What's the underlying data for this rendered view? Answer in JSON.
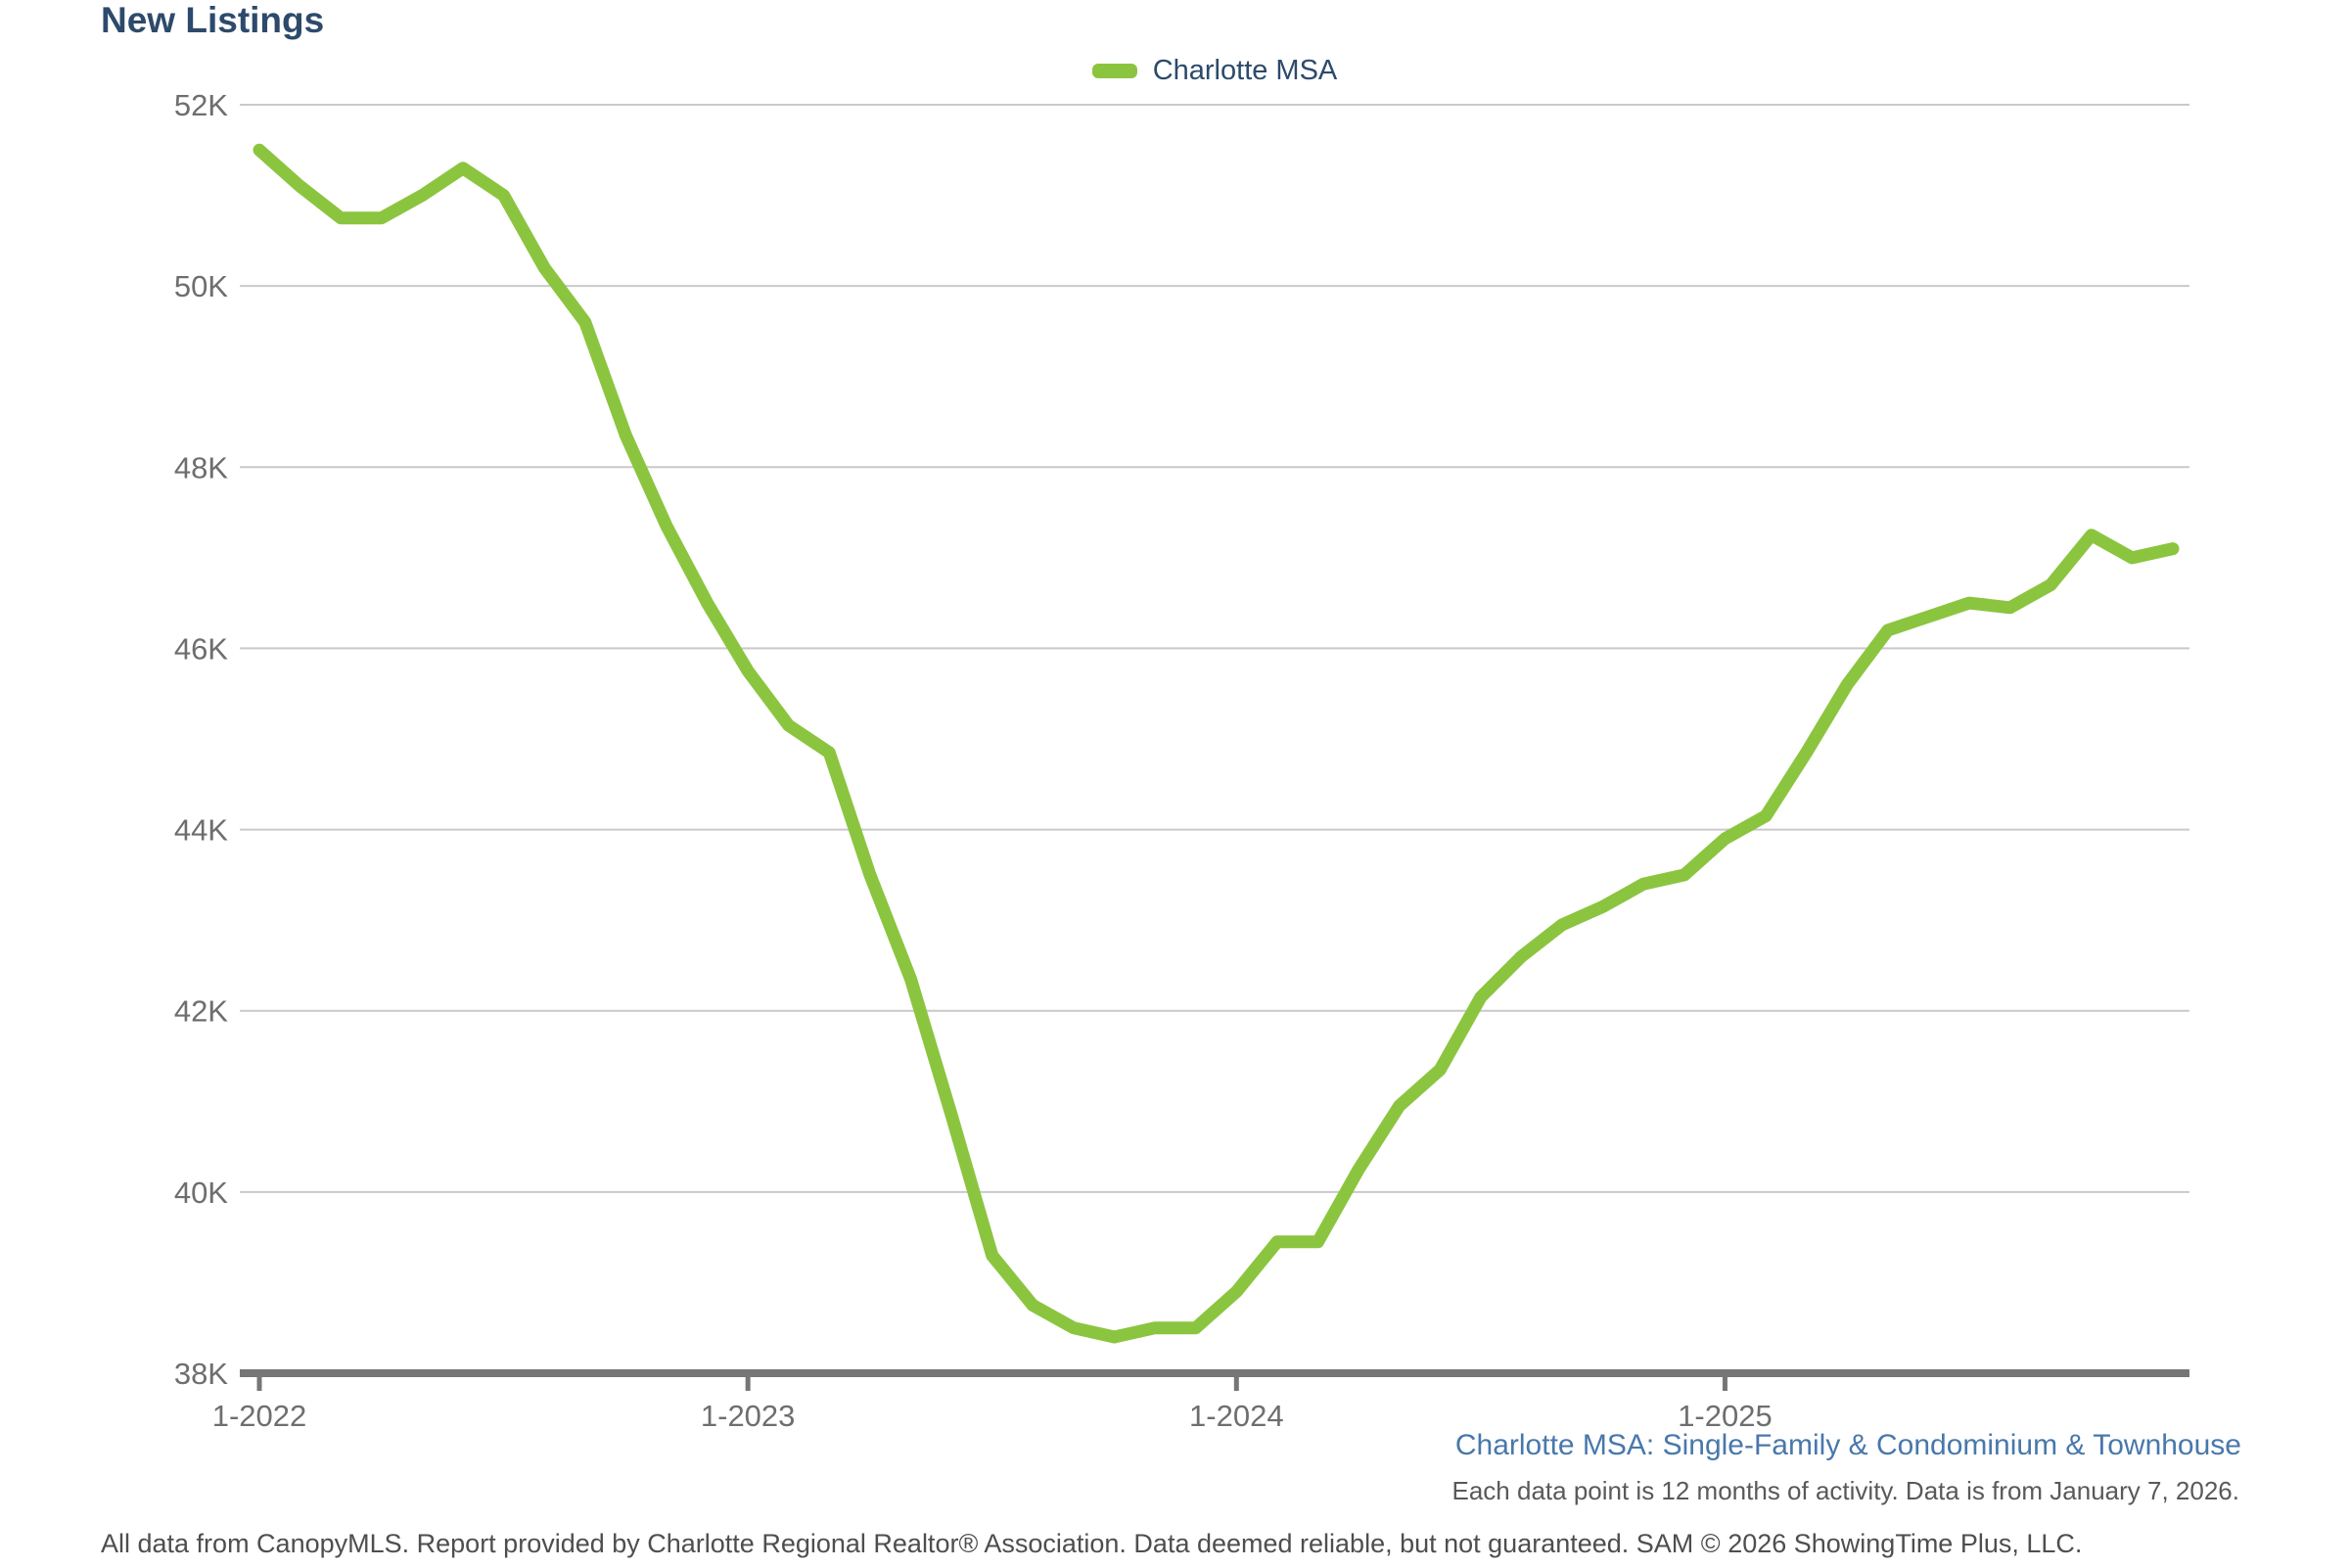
{
  "title": "New Listings",
  "legend": {
    "series_label": "Charlotte MSA"
  },
  "captions": {
    "series_note": "Charlotte MSA: Single-Family & Condominium & Townhouse",
    "data_note": "Each data point is 12 months of activity. Data is from January 7, 2026.",
    "footer": "All data from CanopyMLS. Report provided by Charlotte Regional Realtor® Association. Data deemed reliable, but not guaranteed. SAM © 2026 ShowingTime Plus, LLC."
  },
  "colors": {
    "line": "#8bc53f",
    "title_text": "#2d4a6b",
    "caption_blue": "#4878ab",
    "axis_text": "#6e6e6e",
    "gridline": "#c9c9c9",
    "axis_line": "#767676"
  },
  "chart_data": {
    "type": "line",
    "title": "New Listings",
    "xlabel": "",
    "ylabel": "",
    "ylim": [
      38000,
      52000
    ],
    "grid": "horizontal",
    "legend_position": "top-center",
    "y_ticks": [
      "52K",
      "50K",
      "48K",
      "46K",
      "44K",
      "42K",
      "40K",
      "38K"
    ],
    "y_tick_values": [
      52000,
      50000,
      48000,
      46000,
      44000,
      42000,
      40000,
      38000
    ],
    "x_ticks": [
      "1-2022",
      "1-2023",
      "1-2024",
      "1-2025"
    ],
    "months": [
      "1-2022",
      "2-2022",
      "3-2022",
      "4-2022",
      "5-2022",
      "6-2022",
      "7-2022",
      "8-2022",
      "9-2022",
      "10-2022",
      "11-2022",
      "12-2022",
      "1-2023",
      "2-2023",
      "3-2023",
      "4-2023",
      "5-2023",
      "6-2023",
      "7-2023",
      "8-2023",
      "9-2023",
      "10-2023",
      "11-2023",
      "12-2023",
      "1-2024",
      "2-2024",
      "3-2024",
      "4-2024",
      "5-2024",
      "6-2024",
      "7-2024",
      "8-2024",
      "9-2024",
      "10-2024",
      "11-2024",
      "12-2024",
      "1-2025",
      "2-2025",
      "3-2025",
      "4-2025",
      "5-2025",
      "6-2025",
      "7-2025",
      "8-2025",
      "9-2025",
      "10-2025",
      "11-2025",
      "12-2025"
    ],
    "series": [
      {
        "name": "Charlotte MSA",
        "values": [
          51500,
          51100,
          50750,
          50750,
          51000,
          51300,
          51000,
          50200,
          49600,
          48350,
          47350,
          46500,
          45750,
          45150,
          44850,
          43500,
          42350,
          40850,
          39300,
          38750,
          38500,
          38400,
          38500,
          38500,
          38900,
          39450,
          39450,
          40250,
          40950,
          41350,
          42150,
          42600,
          42950,
          43150,
          43400,
          43500,
          43900,
          44150,
          44850,
          45600,
          46200,
          46350,
          46500,
          46450,
          46700,
          47250,
          47000,
          47100
        ]
      }
    ]
  }
}
